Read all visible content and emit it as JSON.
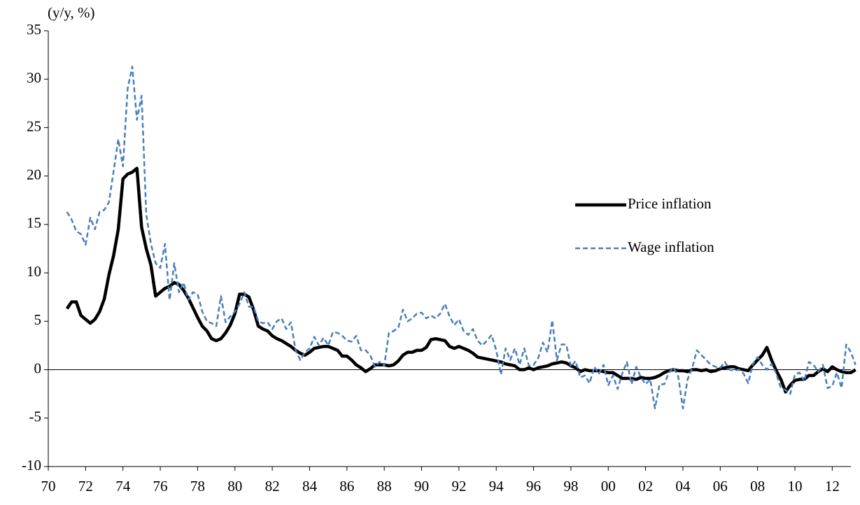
{
  "chart_data": {
    "type": "line",
    "y_label": "(y/y, %)",
    "x": [
      1971,
      1971.25,
      1971.5,
      1971.75,
      1972,
      1972.25,
      1972.5,
      1972.75,
      1973,
      1973.25,
      1973.5,
      1973.75,
      1974,
      1974.25,
      1974.5,
      1974.75,
      1975,
      1975.25,
      1975.5,
      1975.75,
      1976,
      1976.25,
      1976.5,
      1976.75,
      1977,
      1977.25,
      1977.5,
      1977.75,
      1978,
      1978.25,
      1978.5,
      1978.75,
      1979,
      1979.25,
      1979.5,
      1979.75,
      1980,
      1980.25,
      1980.5,
      1980.75,
      1981,
      1981.25,
      1981.5,
      1981.75,
      1982,
      1982.25,
      1982.5,
      1982.75,
      1983,
      1983.25,
      1983.5,
      1983.75,
      1984,
      1984.25,
      1984.5,
      1984.75,
      1985,
      1985.25,
      1985.5,
      1985.75,
      1986,
      1986.25,
      1986.5,
      1986.75,
      1987,
      1987.25,
      1987.5,
      1987.75,
      1988,
      1988.25,
      1988.5,
      1988.75,
      1989,
      1989.25,
      1989.5,
      1989.75,
      1990,
      1990.25,
      1990.5,
      1990.75,
      1991,
      1991.25,
      1991.5,
      1991.75,
      1992,
      1992.25,
      1992.5,
      1992.75,
      1993,
      1993.25,
      1993.5,
      1993.75,
      1994,
      1994.25,
      1994.5,
      1994.75,
      1995,
      1995.25,
      1995.5,
      1995.75,
      1996,
      1996.25,
      1996.5,
      1996.75,
      1997,
      1997.25,
      1997.5,
      1997.75,
      1998,
      1998.25,
      1998.5,
      1998.75,
      1999,
      1999.25,
      1999.5,
      1999.75,
      2000,
      2000.25,
      2000.5,
      2000.75,
      2001,
      2001.25,
      2001.5,
      2001.75,
      2002,
      2002.25,
      2002.5,
      2002.75,
      2003,
      2003.25,
      2003.5,
      2003.75,
      2004,
      2004.25,
      2004.5,
      2004.75,
      2005,
      2005.25,
      2005.5,
      2005.75,
      2006,
      2006.25,
      2006.5,
      2006.75,
      2007,
      2007.25,
      2007.5,
      2007.75,
      2008,
      2008.25,
      2008.5,
      2008.75,
      2009,
      2009.25,
      2009.5,
      2009.75,
      2010,
      2010.25,
      2010.5,
      2010.75,
      2011,
      2011.25,
      2011.5,
      2011.75,
      2012,
      2012.25,
      2012.5,
      2012.75,
      2013,
      2013.25
    ],
    "series": [
      {
        "name": "Price inflation",
        "color": "#000000",
        "dashed": false,
        "values": [
          6.3,
          7.0,
          7.0,
          5.6,
          5.2,
          4.8,
          5.2,
          6.0,
          7.3,
          9.8,
          11.8,
          14.5,
          19.7,
          20.2,
          20.4,
          20.8,
          14.7,
          12.5,
          10.8,
          7.6,
          8.0,
          8.4,
          8.6,
          9.0,
          8.8,
          8.2,
          7.4,
          6.4,
          5.4,
          4.5,
          4.0,
          3.2,
          3.0,
          3.2,
          3.8,
          4.6,
          5.8,
          7.8,
          7.8,
          7.5,
          6.2,
          4.5,
          4.2,
          4.0,
          3.5,
          3.2,
          3.0,
          2.7,
          2.4,
          2.0,
          1.7,
          1.5,
          1.8,
          2.2,
          2.3,
          2.4,
          2.4,
          2.2,
          2.0,
          1.4,
          1.4,
          1.0,
          0.5,
          0.2,
          -0.2,
          0.1,
          0.5,
          0.5,
          0.5,
          0.4,
          0.5,
          0.9,
          1.5,
          1.8,
          1.8,
          2.0,
          2.0,
          2.3,
          3.1,
          3.2,
          3.1,
          3.0,
          2.4,
          2.2,
          2.4,
          2.2,
          2.0,
          1.7,
          1.3,
          1.2,
          1.1,
          1.0,
          0.9,
          0.8,
          0.6,
          0.5,
          0.4,
          0.0,
          0.0,
          0.2,
          0.0,
          0.2,
          0.3,
          0.4,
          0.6,
          0.7,
          0.8,
          0.7,
          0.4,
          0.2,
          -0.2,
          0.0,
          -0.1,
          -0.1,
          -0.1,
          -0.2,
          -0.3,
          -0.3,
          -0.6,
          -0.9,
          -0.9,
          -0.9,
          -1.0,
          -0.8,
          -0.9,
          -0.9,
          -0.8,
          -0.6,
          -0.3,
          -0.1,
          0.0,
          -0.1,
          -0.1,
          -0.2,
          0.0,
          0.0,
          -0.1,
          0.0,
          -0.2,
          -0.1,
          0.1,
          0.2,
          0.3,
          0.3,
          0.1,
          0.0,
          -0.1,
          0.5,
          1.0,
          1.5,
          2.3,
          1.0,
          -0.1,
          -1.0,
          -2.3,
          -1.6,
          -1.1,
          -1.0,
          -1.0,
          -0.6,
          -0.6,
          -0.2,
          0.1,
          -0.2,
          0.3,
          0.0,
          -0.2,
          -0.3,
          -0.3,
          0.0
        ]
      },
      {
        "name": "Wage inflation",
        "color": "#4a7ebb",
        "dashed": true,
        "values": [
          16.3,
          15.5,
          14.3,
          14.0,
          12.9,
          15.7,
          14.5,
          16.3,
          16.5,
          17.3,
          20.5,
          23.8,
          21.0,
          29.0,
          31.3,
          25.8,
          28.3,
          16.0,
          13.0,
          11.0,
          10.5,
          13.0,
          7.2,
          11.0,
          8.0,
          9.0,
          7.2,
          8.0,
          7.8,
          6.0,
          5.0,
          4.8,
          4.5,
          7.6,
          4.9,
          5.5,
          6.0,
          6.8,
          8.0,
          6.5,
          6.5,
          5.0,
          4.8,
          4.9,
          4.2,
          5.0,
          5.3,
          4.2,
          4.9,
          2.0,
          1.0,
          1.8,
          2.2,
          3.4,
          2.5,
          3.3,
          2.5,
          3.9,
          3.8,
          3.5,
          3.0,
          2.9,
          3.5,
          2.0,
          2.0,
          1.5,
          0.3,
          0.8,
          0.4,
          3.8,
          4.0,
          4.3,
          6.2,
          5.0,
          5.3,
          5.8,
          5.9,
          5.3,
          5.6,
          5.3,
          5.8,
          6.8,
          5.5,
          4.6,
          5.2,
          4.0,
          3.6,
          4.2,
          3.0,
          2.5,
          3.0,
          3.6,
          2.0,
          -0.5,
          2.2,
          1.0,
          2.2,
          0.5,
          2.2,
          0.4,
          0.5,
          1.2,
          2.8,
          1.8,
          5.1,
          1.0,
          2.6,
          2.6,
          0.3,
          0.9,
          -0.8,
          -0.6,
          -1.4,
          0.3,
          -0.4,
          0.5,
          -1.6,
          -0.6,
          -2.0,
          -0.4,
          0.8,
          -1.5,
          0.3,
          -0.8,
          -1.5,
          -1.0,
          -4.0,
          -1.5,
          -1.5,
          -0.3,
          0.2,
          -0.7,
          -4.0,
          -1.0,
          0.2,
          2.0,
          1.5,
          1.0,
          0.5,
          0.3,
          0.2,
          0.8,
          0.0,
          -0.1,
          0.0,
          -0.4,
          -1.4,
          0.6,
          1.3,
          0.5,
          0.0,
          0.6,
          -0.4,
          -1.9,
          -2.1,
          -2.5,
          -0.5,
          -0.3,
          -1.2,
          0.8,
          0.5,
          -0.2,
          0.5,
          -1.9,
          -1.7,
          -0.3,
          -1.9,
          2.6,
          1.8,
          0.5
        ]
      }
    ],
    "xlim": [
      1970,
      2013
    ],
    "xticks": [
      {
        "value": 1970,
        "label": "70"
      },
      {
        "value": 1972,
        "label": "72"
      },
      {
        "value": 1974,
        "label": "74"
      },
      {
        "value": 1976,
        "label": "76"
      },
      {
        "value": 1978,
        "label": "78"
      },
      {
        "value": 1980,
        "label": "80"
      },
      {
        "value": 1982,
        "label": "82"
      },
      {
        "value": 1984,
        "label": "84"
      },
      {
        "value": 1986,
        "label": "86"
      },
      {
        "value": 1988,
        "label": "88"
      },
      {
        "value": 1990,
        "label": "90"
      },
      {
        "value": 1992,
        "label": "92"
      },
      {
        "value": 1994,
        "label": "94"
      },
      {
        "value": 1996,
        "label": "96"
      },
      {
        "value": 1998,
        "label": "98"
      },
      {
        "value": 2000,
        "label": "00"
      },
      {
        "value": 2002,
        "label": "02"
      },
      {
        "value": 2004,
        "label": "04"
      },
      {
        "value": 2006,
        "label": "06"
      },
      {
        "value": 2008,
        "label": "08"
      },
      {
        "value": 2010,
        "label": "10"
      },
      {
        "value": 2012,
        "label": "12"
      }
    ],
    "ylim": [
      -10,
      35
    ],
    "yticks": [
      -10,
      -5,
      0,
      5,
      10,
      15,
      20,
      25,
      30,
      35
    ],
    "grid": false
  }
}
